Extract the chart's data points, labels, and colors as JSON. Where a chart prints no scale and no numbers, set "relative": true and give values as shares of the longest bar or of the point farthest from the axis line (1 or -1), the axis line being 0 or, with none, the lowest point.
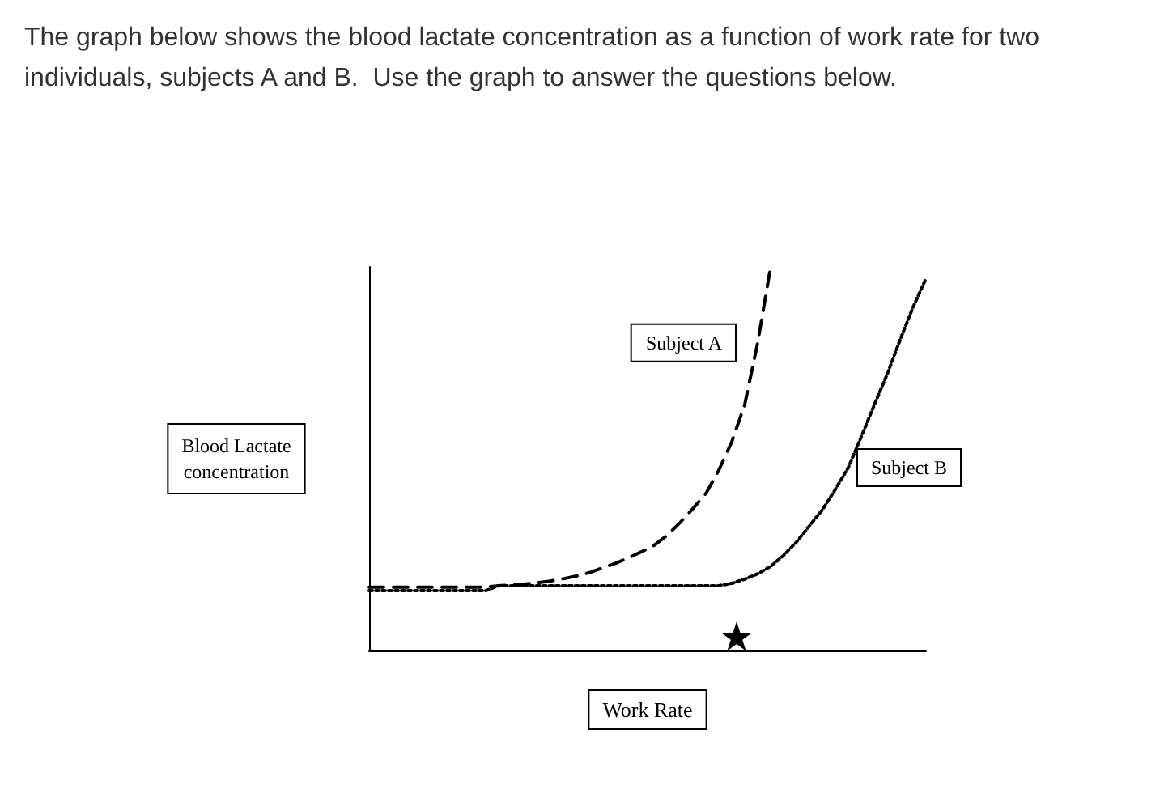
{
  "chart_data": {
    "type": "line",
    "title": "The graph below shows the blood lactate concentration as a function of work rate for two individuals, subjects A and B.  Use the graph to answer the questions below.",
    "xlabel": "Work Rate",
    "ylabel": "Blood Lactate concentration",
    "relative": true,
    "legend": false,
    "grid": false,
    "marker": "none",
    "categories": [
      null,
      null,
      null,
      null,
      null,
      null,
      null,
      null,
      null,
      null,
      null,
      null,
      null,
      null,
      null,
      null,
      null,
      null,
      null,
      null,
      null,
      null,
      null,
      null,
      null,
      null,
      null,
      null,
      null,
      null,
      null,
      null,
      null,
      null,
      null,
      null,
      null,
      null,
      null,
      null,
      null,
      null,
      null,
      null
    ],
    "series": [
      {
        "name": "Subject A",
        "color": "#000000",
        "line_style": "dashed",
        "values": [
          0.165,
          0.165,
          0.165,
          0.165,
          0.165,
          0.165,
          0.165,
          0.165,
          0.165,
          0.165,
          0.169,
          0.171,
          0.173,
          0.177,
          0.181,
          0.187,
          0.194,
          0.203,
          0.215,
          0.227,
          0.241,
          0.257,
          0.274,
          0.3,
          0.333,
          0.37,
          0.409,
          0.47,
          0.544,
          0.641,
          0.802,
          1,
          null,
          null,
          null,
          null,
          null,
          null,
          null,
          null,
          null,
          null,
          null,
          null
        ]
      },
      {
        "name": "Subject B",
        "color": "#000000",
        "line_style": "dotted",
        "values": [
          0.156,
          0.156,
          0.156,
          0.156,
          0.156,
          0.156,
          0.156,
          0.156,
          0.156,
          0.156,
          0.169,
          0.169,
          0.169,
          0.169,
          0.169,
          0.169,
          0.169,
          0.169,
          0.169,
          0.169,
          0.169,
          0.169,
          0.169,
          0.169,
          0.169,
          0.169,
          0.169,
          0.169,
          0.175,
          0.186,
          0.2,
          0.219,
          0.248,
          0.283,
          0.325,
          0.367,
          0.42,
          0.477,
          0.557,
          0.64,
          0.72,
          0.81,
          0.895,
          0.97
        ]
      }
    ]
  }
}
